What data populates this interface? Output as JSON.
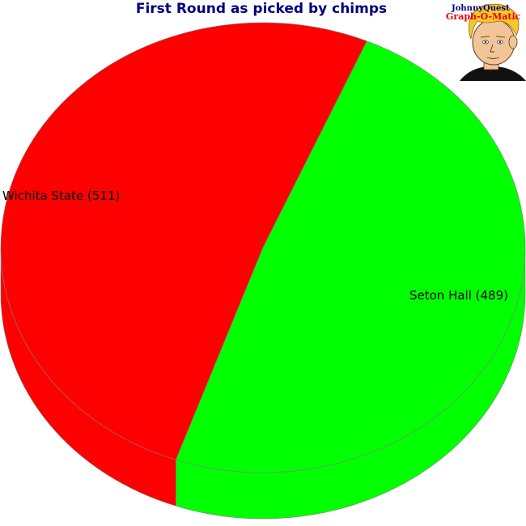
{
  "chart_data": {
    "type": "pie",
    "title": "First Round as picked by chimps",
    "slices": [
      {
        "label": "Wichita State (511)",
        "name": "Wichita State",
        "value": 511,
        "color": "#ff0000",
        "side_color": "#ff0000"
      },
      {
        "label": "Seton Hall (489)",
        "name": "Seton Hall",
        "value": 489,
        "color": "#00ff00",
        "side_color": "#00ff00"
      }
    ],
    "three_d": true,
    "title_color": "#000080",
    "edge_color": "#808080"
  },
  "logo": {
    "line1": "JohnnyQuest",
    "line2": "Graph-O-Matic",
    "line1_color": "#000080",
    "line2_color": "#e8000b"
  }
}
